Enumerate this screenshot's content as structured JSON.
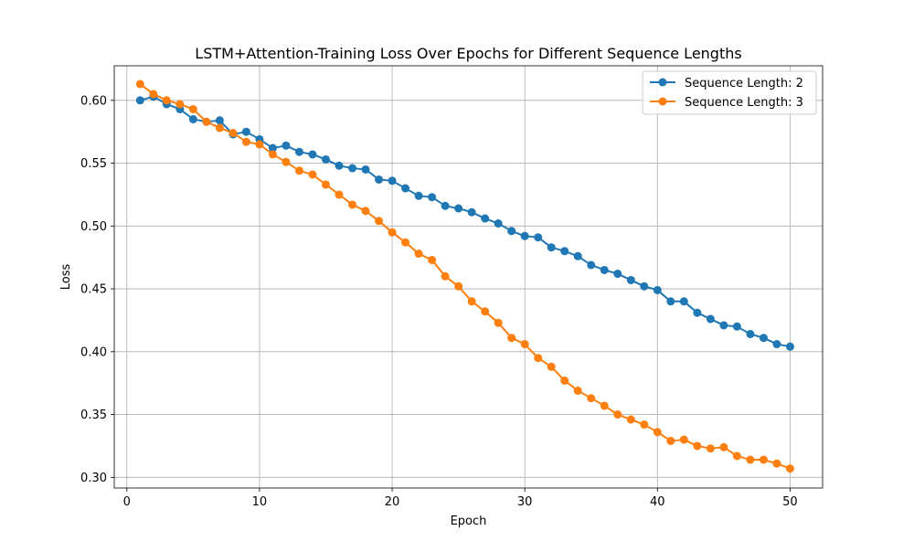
{
  "chart_data": {
    "type": "line",
    "title": "LSTM+Attention-Training Loss Over Epochs for Different Sequence Lengths",
    "xlabel": "Epoch",
    "ylabel": "Loss",
    "xlim": [
      -0.95,
      52.45
    ],
    "ylim": [
      0.2915,
      0.6275
    ],
    "xticks": [
      0,
      10,
      20,
      30,
      40,
      50
    ],
    "yticks": [
      0.3,
      0.35,
      0.4,
      0.45,
      0.5,
      0.55,
      0.6
    ],
    "xtick_labels": [
      "0",
      "10",
      "20",
      "30",
      "40",
      "50"
    ],
    "ytick_labels": [
      "0.30",
      "0.35",
      "0.40",
      "0.45",
      "0.50",
      "0.55",
      "0.60"
    ],
    "grid": true,
    "legend_position": "top-right",
    "x": [
      1,
      2,
      3,
      4,
      5,
      6,
      7,
      8,
      9,
      10,
      11,
      12,
      13,
      14,
      15,
      16,
      17,
      18,
      19,
      20,
      21,
      22,
      23,
      24,
      25,
      26,
      27,
      28,
      29,
      30,
      31,
      32,
      33,
      34,
      35,
      36,
      37,
      38,
      39,
      40,
      41,
      42,
      43,
      44,
      45,
      46,
      47,
      48,
      49,
      50
    ],
    "series": [
      {
        "name": "Sequence Length: 2",
        "color": "#1f77b4",
        "values": [
          0.6,
          0.603,
          0.597,
          0.593,
          0.585,
          0.583,
          0.584,
          0.573,
          0.575,
          0.569,
          0.562,
          0.564,
          0.559,
          0.557,
          0.553,
          0.548,
          0.546,
          0.545,
          0.537,
          0.536,
          0.53,
          0.524,
          0.523,
          0.516,
          0.514,
          0.511,
          0.506,
          0.502,
          0.496,
          0.492,
          0.491,
          0.483,
          0.48,
          0.476,
          0.469,
          0.465,
          0.462,
          0.457,
          0.452,
          0.449,
          0.44,
          0.44,
          0.431,
          0.426,
          0.421,
          0.42,
          0.414,
          0.411,
          0.406,
          0.404
        ]
      },
      {
        "name": "Sequence Length: 3",
        "color": "#ff7f0e",
        "values": [
          0.613,
          0.605,
          0.6,
          0.597,
          0.593,
          0.583,
          0.578,
          0.574,
          0.567,
          0.565,
          0.557,
          0.551,
          0.544,
          0.541,
          0.533,
          0.525,
          0.517,
          0.512,
          0.504,
          0.495,
          0.487,
          0.478,
          0.473,
          0.46,
          0.452,
          0.44,
          0.432,
          0.423,
          0.411,
          0.406,
          0.395,
          0.388,
          0.377,
          0.369,
          0.363,
          0.357,
          0.35,
          0.346,
          0.342,
          0.336,
          0.329,
          0.33,
          0.325,
          0.323,
          0.324,
          0.317,
          0.314,
          0.314,
          0.311,
          0.307
        ]
      }
    ]
  }
}
